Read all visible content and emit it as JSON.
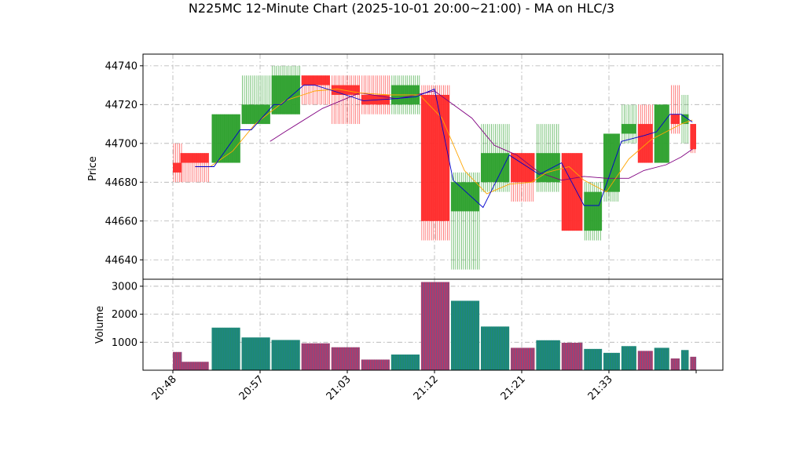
{
  "chart_data": {
    "type": "candlestick",
    "title": "N225MC 12-Minute Chart (2025-10-01 20:00~21:00) - MA on HLC/3",
    "price_axis": {
      "ylabel": "Price",
      "ylim": [
        44630,
        44746
      ],
      "ticks": [
        44640,
        44660,
        44680,
        44700,
        44720,
        44740
      ]
    },
    "volume_axis": {
      "ylabel": "Volume",
      "ylim": [
        0,
        3250
      ],
      "ticks": [
        1000,
        2000,
        3000
      ],
      "tick_labels": [
        "1000",
        "2000",
        "3000"
      ]
    },
    "x_ticks": [
      {
        "label": "20:48",
        "index": 0
      },
      {
        "label": "20:57",
        "index": 9
      },
      {
        "label": "21:03",
        "index": 15
      },
      {
        "label": "21:12",
        "index": 24
      },
      {
        "label": "21:21",
        "index": 33
      },
      {
        "label": "21:33",
        "index": 45
      }
    ],
    "grid": true,
    "colors": {
      "up": "#2ca02c",
      "down": "#ff2a2a",
      "ma_short": "#0000cd",
      "ma_mid": "#ffa500",
      "ma_long": "#800080",
      "vol_edge": "#1f77b4"
    },
    "candles": [
      {
        "t": 0.0,
        "w": 1.2,
        "o": 44690,
        "h": 44700,
        "l": 44680,
        "c": 44685,
        "v": 650
      },
      {
        "t": 1.0,
        "w": 3.8,
        "o": 44695,
        "h": 44695,
        "l": 44680,
        "c": 44690,
        "v": 300
      },
      {
        "t": 5.2,
        "w": 3.8,
        "o": 44690,
        "h": 44715,
        "l": 44690,
        "c": 44715,
        "v": 1520
      },
      {
        "t": 9.2,
        "w": 3.8,
        "o": 44710,
        "h": 44735,
        "l": 44710,
        "c": 44720,
        "v": 1170
      },
      {
        "t": 13.2,
        "w": 3.8,
        "o": 44715,
        "h": 44740,
        "l": 44715,
        "c": 44735,
        "v": 1080
      },
      {
        "t": 17.2,
        "w": 3.8,
        "o": 44735,
        "h": 44735,
        "l": 44720,
        "c": 44730,
        "v": 960
      },
      {
        "t": 21.2,
        "w": 3.8,
        "o": 44730,
        "h": 44735,
        "l": 44710,
        "c": 44725,
        "v": 820
      },
      {
        "t": 25.2,
        "w": 3.8,
        "o": 44725,
        "h": 44735,
        "l": 44715,
        "c": 44720,
        "v": 380
      },
      {
        "t": 29.2,
        "w": 3.8,
        "o": 44720,
        "h": 44735,
        "l": 44715,
        "c": 44730,
        "v": 560
      },
      {
        "t": 33.2,
        "w": 3.8,
        "o": 44725,
        "h": 44730,
        "l": 44650,
        "c": 44660,
        "v": 3150
      },
      {
        "t": 37.2,
        "w": 3.8,
        "o": 44665,
        "h": 44685,
        "l": 44635,
        "c": 44680,
        "v": 2480
      },
      {
        "t": 41.2,
        "w": 3.8,
        "o": 44680,
        "h": 44710,
        "l": 44675,
        "c": 44695,
        "v": 1560
      },
      {
        "t": 45.2,
        "w": 3.2,
        "o": 44695,
        "h": 44695,
        "l": 44670,
        "c": 44680,
        "v": 800
      },
      {
        "t": 48.6,
        "w": 3.2,
        "o": 44680,
        "h": 44710,
        "l": 44675,
        "c": 44695,
        "v": 1070
      },
      {
        "t": 52.0,
        "w": 2.8,
        "o": 44695,
        "h": 44695,
        "l": 44655,
        "c": 44655,
        "v": 980
      },
      {
        "t": 55.0,
        "w": 2.4,
        "o": 44655,
        "h": 44680,
        "l": 44650,
        "c": 44675,
        "v": 760
      },
      {
        "t": 57.6,
        "w": 2.2,
        "o": 44675,
        "h": 44705,
        "l": 44670,
        "c": 44705,
        "v": 620
      },
      {
        "t": 60.0,
        "w": 2.0,
        "o": 44705,
        "h": 44720,
        "l": 44700,
        "c": 44710,
        "v": 860
      },
      {
        "t": 62.2,
        "w": 2.0,
        "o": 44710,
        "h": 44720,
        "l": 44690,
        "c": 44690,
        "v": 690
      },
      {
        "t": 64.4,
        "w": 2.0,
        "o": 44690,
        "h": 44720,
        "l": 44690,
        "c": 44720,
        "v": 800
      },
      {
        "t": 66.6,
        "w": 1.2,
        "o": 44715,
        "h": 44730,
        "l": 44705,
        "c": 44710,
        "v": 420
      },
      {
        "t": 68.0,
        "w": 1.0,
        "o": 44710,
        "h": 44725,
        "l": 44700,
        "c": 44715,
        "v": 720
      },
      {
        "t": 69.2,
        "w": 0.8,
        "o": 44710,
        "h": 44710,
        "l": 44695,
        "c": 44697,
        "v": 480
      }
    ],
    "ma_short": [
      [
        3,
        44688
      ],
      [
        5.5,
        44688
      ],
      [
        9,
        44707
      ],
      [
        10.5,
        44707
      ],
      [
        13.5,
        44720
      ],
      [
        14.5,
        44720
      ],
      [
        17.5,
        44730
      ],
      [
        19,
        44730
      ],
      [
        21.5,
        44727
      ],
      [
        25.5,
        44722
      ],
      [
        29.5,
        44723
      ],
      [
        32.5,
        44724
      ],
      [
        35,
        44728
      ],
      [
        37.5,
        44681
      ],
      [
        41.5,
        44667
      ],
      [
        45,
        44694
      ],
      [
        49,
        44684
      ],
      [
        52,
        44690
      ],
      [
        55,
        44668
      ],
      [
        57,
        44668
      ],
      [
        60,
        44701
      ],
      [
        63,
        44704
      ],
      [
        64.7,
        44706
      ],
      [
        66.5,
        44715
      ],
      [
        68,
        44715
      ],
      [
        69.5,
        44711
      ]
    ],
    "ma_mid": [
      [
        5,
        44688
      ],
      [
        8,
        44696
      ],
      [
        11,
        44710
      ],
      [
        15,
        44722
      ],
      [
        19,
        44727
      ],
      [
        22,
        44728
      ],
      [
        25,
        44726
      ],
      [
        29,
        44725
      ],
      [
        33,
        44725
      ],
      [
        36,
        44713
      ],
      [
        39,
        44686
      ],
      [
        42,
        44674
      ],
      [
        45,
        44679
      ],
      [
        48,
        44680
      ],
      [
        50,
        44685
      ],
      [
        53,
        44688
      ],
      [
        55,
        44681
      ],
      [
        58,
        44675
      ],
      [
        61,
        44692
      ],
      [
        64,
        44702
      ],
      [
        66,
        44706
      ],
      [
        68,
        44710
      ],
      [
        69.5,
        44712
      ]
    ],
    "ma_long": [
      [
        13,
        44701
      ],
      [
        15,
        44706
      ],
      [
        20,
        44718
      ],
      [
        25,
        44726
      ],
      [
        30,
        44723
      ],
      [
        35,
        44727
      ],
      [
        40,
        44713
      ],
      [
        43,
        44699
      ],
      [
        46,
        44694
      ],
      [
        49,
        44685
      ],
      [
        52,
        44681
      ],
      [
        55,
        44683
      ],
      [
        58,
        44682
      ],
      [
        61,
        44682
      ],
      [
        63,
        44686
      ],
      [
        66,
        44689
      ],
      [
        68,
        44693
      ],
      [
        69.5,
        44697
      ]
    ]
  }
}
